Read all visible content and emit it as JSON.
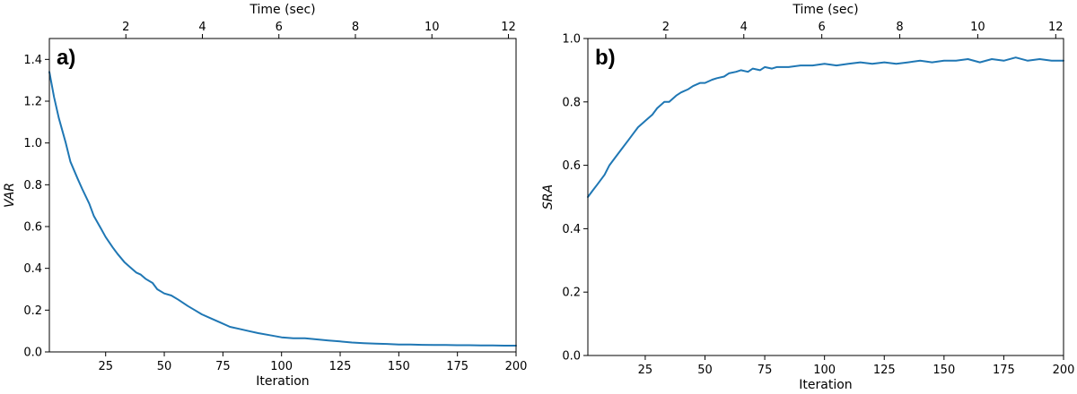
{
  "chart_data": [
    {
      "type": "line",
      "panel_label": "a)",
      "xlabel": "Iteration",
      "ylabel": "VAR",
      "x2label": "Time (sec)",
      "xlim": [
        1,
        200
      ],
      "ylim": [
        0,
        1.5
      ],
      "x2lim": [
        0,
        12.2
      ],
      "xticks": [
        25,
        50,
        75,
        100,
        125,
        150,
        175,
        200
      ],
      "yticks": [
        0.0,
        0.2,
        0.4,
        0.6,
        0.8,
        1.0,
        1.2,
        1.4
      ],
      "ytick_labels": [
        "0.0",
        "0.2",
        "0.4",
        "0.6",
        "0.8",
        "1.0",
        "1.2",
        "1.4"
      ],
      "x2ticks": [
        2,
        4,
        6,
        8,
        10,
        12
      ],
      "series": [
        {
          "color": "#1f77b4",
          "x": [
            1,
            3,
            5,
            8,
            10,
            13,
            15,
            18,
            20,
            23,
            25,
            28,
            30,
            33,
            36,
            38,
            40,
            42,
            45,
            47,
            50,
            53,
            56,
            60,
            63,
            66,
            70,
            74,
            78,
            82,
            86,
            90,
            95,
            100,
            105,
            110,
            115,
            120,
            125,
            130,
            135,
            140,
            145,
            150,
            155,
            160,
            165,
            170,
            175,
            180,
            185,
            190,
            195,
            200
          ],
          "y": [
            1.34,
            1.22,
            1.12,
            1.0,
            0.91,
            0.83,
            0.78,
            0.71,
            0.65,
            0.59,
            0.55,
            0.5,
            0.47,
            0.43,
            0.4,
            0.38,
            0.37,
            0.35,
            0.33,
            0.3,
            0.28,
            0.27,
            0.25,
            0.22,
            0.2,
            0.18,
            0.16,
            0.14,
            0.12,
            0.11,
            0.1,
            0.09,
            0.08,
            0.07,
            0.065,
            0.065,
            0.06,
            0.055,
            0.05,
            0.045,
            0.042,
            0.04,
            0.038,
            0.035,
            0.035,
            0.034,
            0.033,
            0.033,
            0.032,
            0.032,
            0.031,
            0.031,
            0.03,
            0.03
          ]
        }
      ]
    },
    {
      "type": "line",
      "panel_label": "b)",
      "xlabel": "Iteration",
      "ylabel": "SRA",
      "x2label": "Time (sec)",
      "xlim": [
        1,
        200
      ],
      "ylim": [
        0,
        1.0
      ],
      "x2lim": [
        0,
        12.2
      ],
      "xticks": [
        25,
        50,
        75,
        100,
        125,
        150,
        175,
        200
      ],
      "yticks": [
        0.0,
        0.2,
        0.4,
        0.6,
        0.8,
        1.0
      ],
      "ytick_labels": [
        "0.0",
        "0.2",
        "0.4",
        "0.6",
        "0.8",
        "1.0"
      ],
      "x2ticks": [
        2,
        4,
        6,
        8,
        10,
        12
      ],
      "series": [
        {
          "color": "#1f77b4",
          "x": [
            1,
            3,
            5,
            8,
            10,
            12,
            15,
            18,
            20,
            22,
            25,
            28,
            30,
            33,
            35,
            38,
            40,
            43,
            45,
            48,
            50,
            53,
            55,
            58,
            60,
            63,
            65,
            68,
            70,
            73,
            75,
            78,
            80,
            85,
            90,
            95,
            100,
            105,
            110,
            115,
            120,
            125,
            130,
            135,
            140,
            145,
            150,
            155,
            160,
            165,
            170,
            175,
            180,
            185,
            190,
            195,
            200
          ],
          "y": [
            0.5,
            0.52,
            0.54,
            0.57,
            0.6,
            0.62,
            0.65,
            0.68,
            0.7,
            0.72,
            0.74,
            0.76,
            0.78,
            0.8,
            0.8,
            0.82,
            0.83,
            0.84,
            0.85,
            0.86,
            0.86,
            0.87,
            0.875,
            0.88,
            0.89,
            0.895,
            0.9,
            0.895,
            0.905,
            0.9,
            0.91,
            0.905,
            0.91,
            0.91,
            0.915,
            0.915,
            0.92,
            0.915,
            0.92,
            0.925,
            0.92,
            0.925,
            0.92,
            0.925,
            0.93,
            0.925,
            0.93,
            0.93,
            0.935,
            0.925,
            0.935,
            0.93,
            0.94,
            0.93,
            0.935,
            0.93,
            0.93
          ]
        }
      ]
    }
  ]
}
